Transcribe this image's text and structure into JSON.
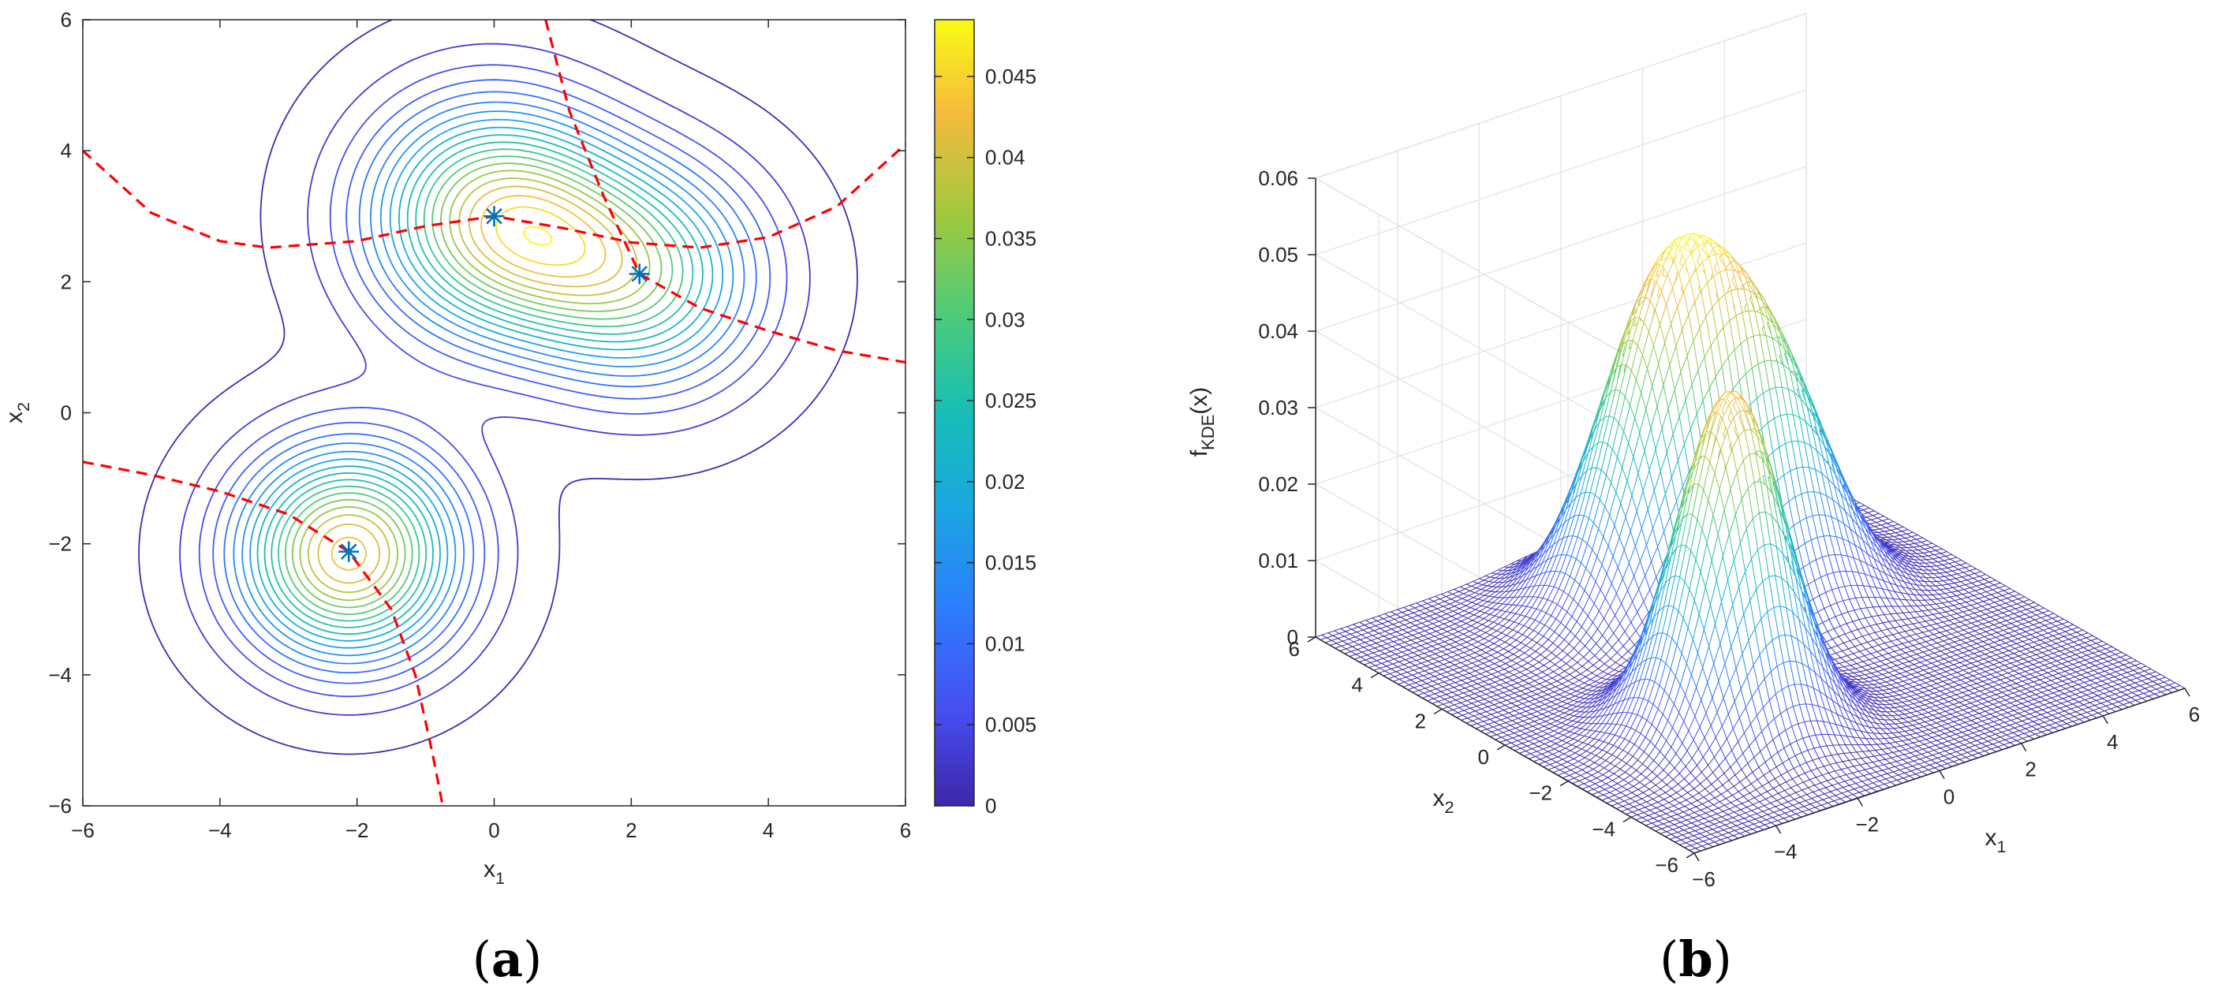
{
  "chart_data": [
    {
      "type": "contour",
      "panel_label": "a",
      "xlabel": "x",
      "xlabel_sub": "1",
      "ylabel": "x",
      "ylabel_sub": "2",
      "xlim": [
        -6,
        6
      ],
      "ylim": [
        -6,
        6
      ],
      "xticks": [
        -6,
        -4,
        -2,
        0,
        2,
        4,
        6
      ],
      "yticks": [
        -6,
        -4,
        -2,
        0,
        2,
        4,
        6
      ],
      "xtick_labels": [
        "−6",
        "−4",
        "−2",
        "0",
        "2",
        "4",
        "6"
      ],
      "ytick_labels": [
        "−6",
        "−4",
        "−2",
        "0",
        "2",
        "4",
        "6"
      ],
      "grid": false,
      "colormap": "parula",
      "colorbar": {
        "range": [
          0,
          0.0485
        ],
        "ticks": [
          0,
          0.005,
          0.01,
          0.015,
          0.02,
          0.025,
          0.03,
          0.035,
          0.04,
          0.045
        ],
        "tick_labels": [
          "0",
          "0.005",
          "0.01",
          "0.015",
          "0.02",
          "0.025",
          "0.03",
          "0.035",
          "0.04",
          "0.045"
        ]
      },
      "markers": [
        {
          "x": 0,
          "y": 3
        },
        {
          "x": 2.12,
          "y": 2.12
        },
        {
          "x": -2.12,
          "y": -2.12
        }
      ],
      "dashed_color": "#ff0000",
      "dashed_curves": [
        {
          "x": [
            -6,
            -5,
            -4,
            -3.3,
            -2,
            -1,
            0,
            1,
            2,
            3,
            4,
            5,
            6
          ],
          "y": [
            4.0,
            3.05,
            2.62,
            2.52,
            2.62,
            2.85,
            3.0,
            2.82,
            2.6,
            2.52,
            2.68,
            3.15,
            4.1
          ]
        },
        {
          "x": [
            0.75,
            1.1,
            1.6,
            2.12,
            3,
            4,
            5,
            6
          ],
          "y": [
            6,
            4.6,
            3.3,
            2.12,
            1.6,
            1.25,
            0.95,
            0.77
          ]
        },
        {
          "x": [
            -6,
            -5,
            -4,
            -3,
            -2.12,
            -1.5,
            -1.15,
            -0.9,
            -0.75
          ],
          "y": [
            -0.75,
            -0.95,
            -1.2,
            -1.55,
            -2.12,
            -3.0,
            -4.0,
            -5.2,
            -6
          ]
        }
      ]
    },
    {
      "type": "surface",
      "panel_label": "b",
      "xlabel": "x",
      "xlabel_sub": "1",
      "ylabel": "x",
      "ylabel_sub": "2",
      "zlabel": "f",
      "zlabel_sub": "KDE",
      "zlabel_suffix": "(x)",
      "xlim": [
        -6,
        6
      ],
      "ylim": [
        -6,
        6
      ],
      "zlim": [
        0,
        0.06
      ],
      "xticks": [
        -6,
        -4,
        -2,
        0,
        2,
        4,
        6
      ],
      "yticks": [
        -6,
        -4,
        -2,
        0,
        2,
        4,
        6
      ],
      "zticks": [
        0,
        0.01,
        0.02,
        0.03,
        0.04,
        0.05,
        0.06
      ],
      "xtick_labels": [
        "−6",
        "−4",
        "−2",
        "0",
        "2",
        "4",
        "6"
      ],
      "ytick_labels": [
        "−6",
        "−4",
        "−2",
        "0",
        "2",
        "4",
        "6"
      ],
      "ztick_labels": [
        "0",
        "0.01",
        "0.02",
        "0.03",
        "0.04",
        "0.05",
        "0.06"
      ],
      "grid": true,
      "colormap": "parula"
    }
  ]
}
